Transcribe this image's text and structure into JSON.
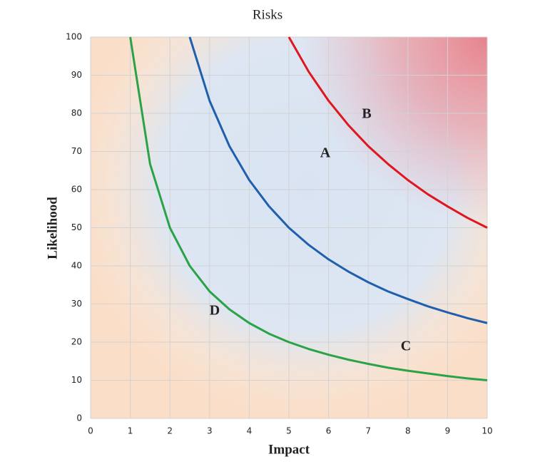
{
  "chart_data": {
    "type": "line",
    "title": "Risks",
    "x_label": "Impact",
    "y_label": "Likelihood",
    "x": [
      1,
      1.5,
      2,
      2.5,
      3,
      3.5,
      4,
      4.5,
      5,
      5.5,
      6,
      6.5,
      7,
      7.5,
      8,
      8.5,
      9,
      9.5,
      10
    ],
    "series": [
      {
        "color": "#2aa348",
        "values": [
          100,
          66.7,
          50,
          40,
          33.3,
          28.6,
          25,
          22.2,
          20,
          18.2,
          16.7,
          15.4,
          14.3,
          13.3,
          12.5,
          11.8,
          11.1,
          10.5,
          10
        ]
      },
      {
        "color": "#1f5fae",
        "values": [
          null,
          null,
          null,
          100,
          83.3,
          71.4,
          62.5,
          55.6,
          50,
          45.5,
          41.7,
          38.5,
          35.7,
          33.3,
          31.3,
          29.4,
          27.8,
          26.3,
          25
        ]
      },
      {
        "color": "#e0161e",
        "values": [
          null,
          null,
          null,
          null,
          null,
          null,
          null,
          null,
          100,
          90.9,
          83.3,
          76.9,
          71.4,
          66.7,
          62.5,
          58.8,
          55.6,
          52.6,
          50
        ]
      }
    ],
    "annotations": [
      "A",
      "B",
      "C",
      "D"
    ],
    "xlim": [
      0,
      10
    ],
    "ylim": [
      0,
      100
    ],
    "xticks": [
      0,
      1,
      2,
      3,
      4,
      5,
      6,
      7,
      8,
      9,
      10
    ],
    "yticks": [
      0,
      10,
      20,
      30,
      40,
      50,
      60,
      70,
      80,
      90,
      100
    ],
    "grid": true
  }
}
